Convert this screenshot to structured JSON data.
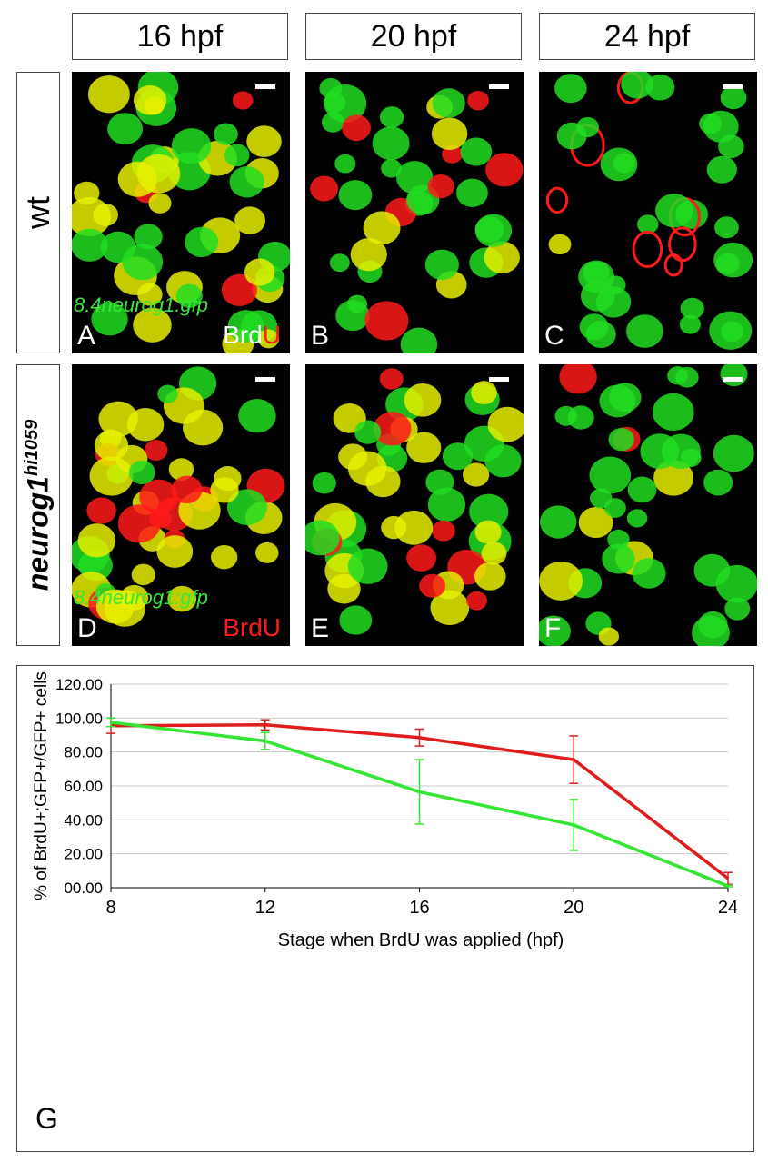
{
  "column_headers": [
    "16 hpf",
    "20 hpf",
    "24 hpf"
  ],
  "row_headers": {
    "wt": "wt",
    "mutant": {
      "gene": "neurog1",
      "allele": "hi1059"
    }
  },
  "panels": [
    {
      "letter": "A",
      "transgene": "8.4neurog1:gfp",
      "brdu_a": "Brd",
      "brdu_b": "U"
    },
    {
      "letter": "B"
    },
    {
      "letter": "C"
    },
    {
      "letter": "D",
      "transgene": "8.4neurog1:gfp",
      "brdu_a": "",
      "brdu_b": "BrdU"
    },
    {
      "letter": "E"
    },
    {
      "letter": "F"
    }
  ],
  "colors": {
    "gfp_green": "#22dd22",
    "brdu_red": "#ff1a1a",
    "merge_yellow": "#e6f000",
    "line_green": "#33e633",
    "line_red": "#e01b1b"
  },
  "chart_data": {
    "type": "line",
    "panel_letter": "G",
    "title": "",
    "xlabel": "Stage when BrdU was applied (hpf)",
    "ylabel": "% of BrdU+;GFP+/GFP+ cells",
    "x": [
      8,
      12,
      16,
      20,
      24
    ],
    "xlim": [
      8,
      24
    ],
    "ylim": [
      0,
      120
    ],
    "yticks": [
      "00.00",
      "20.00",
      "40.00",
      "60.00",
      "80.00",
      "100.00",
      "120.00"
    ],
    "grid": true,
    "legend": "none",
    "series": [
      {
        "color": "#e01b1b",
        "values": [
          95.5,
          96.0,
          88.5,
          75.5,
          5.5
        ],
        "err": [
          4.5,
          3.0,
          5.0,
          14.0,
          3.5
        ]
      },
      {
        "color": "#33e633",
        "values": [
          97.5,
          86.5,
          56.5,
          37.0,
          1.0
        ],
        "err": [
          2.5,
          5.0,
          19.0,
          15.0,
          0.5
        ]
      }
    ]
  }
}
